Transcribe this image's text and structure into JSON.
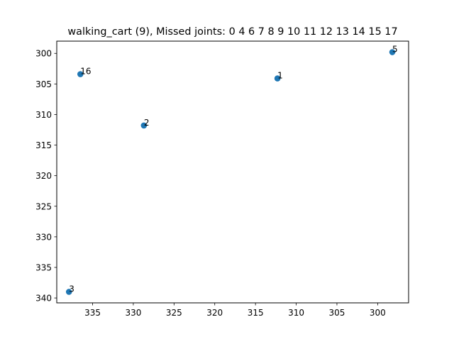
{
  "chart_data": {
    "type": "scatter",
    "title": "walking_cart (9), Missed joints: 0 4 6 7 8 9 10 11 12 13 14 15 17",
    "xlabel": "",
    "ylabel": "",
    "xlim": [
      339.4,
      296.2
    ],
    "ylim": [
      340.8,
      298.0
    ],
    "x_inverted": true,
    "y_inverted": true,
    "grid": false,
    "legend": "none",
    "marker_color": "#1f77b4",
    "x_ticks": [
      335,
      330,
      325,
      320,
      315,
      310,
      305,
      300
    ],
    "y_ticks": [
      300,
      305,
      310,
      315,
      320,
      325,
      330,
      335,
      340
    ],
    "points": [
      {
        "label": "1",
        "x": 312.3,
        "y": 304.1
      },
      {
        "label": "2",
        "x": 328.7,
        "y": 311.8
      },
      {
        "label": "3",
        "x": 337.9,
        "y": 339.0
      },
      {
        "label": "5",
        "x": 298.2,
        "y": 299.8
      },
      {
        "label": "16",
        "x": 336.5,
        "y": 303.4
      }
    ]
  }
}
